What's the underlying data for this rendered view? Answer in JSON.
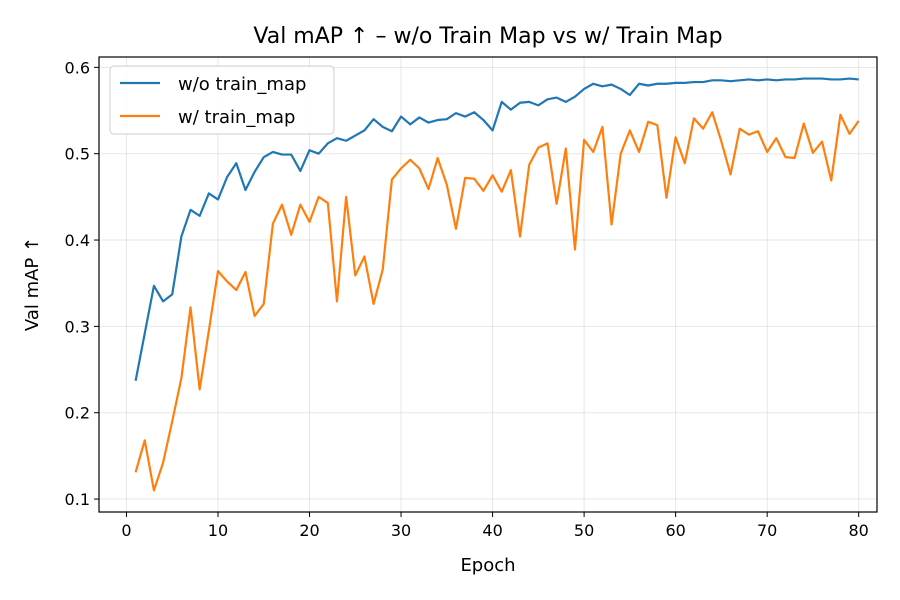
{
  "chart_data": {
    "type": "line",
    "title": "Val mAP ↑ – w/o Train Map vs  w/ Train Map",
    "xlabel": "Epoch",
    "ylabel": "Val mAP ↑",
    "xlim": [
      -3,
      82
    ],
    "ylim": [
      0.085,
      0.612
    ],
    "xticks": [
      0,
      10,
      20,
      30,
      40,
      50,
      60,
      70,
      80
    ],
    "yticks": [
      0.1,
      0.2,
      0.3,
      0.4,
      0.5,
      0.6
    ],
    "grid": true,
    "legend_position": "upper-left",
    "x": [
      1,
      2,
      3,
      4,
      5,
      6,
      7,
      8,
      9,
      10,
      11,
      12,
      13,
      14,
      15,
      16,
      17,
      18,
      19,
      20,
      21,
      22,
      23,
      24,
      25,
      26,
      27,
      28,
      29,
      30,
      31,
      32,
      33,
      34,
      35,
      36,
      37,
      38,
      39,
      40,
      41,
      42,
      43,
      44,
      45,
      46,
      47,
      48,
      49,
      50,
      51,
      52,
      53,
      54,
      55,
      56,
      57,
      58,
      59,
      60,
      61,
      62,
      63,
      64,
      65,
      66,
      67,
      68,
      69,
      70,
      71,
      72,
      73,
      74,
      75,
      76,
      77,
      78,
      79,
      80
    ],
    "series": [
      {
        "name": "w/o train_map",
        "color": "#1f77b4",
        "values": [
          0.237,
          0.292,
          0.347,
          0.329,
          0.337,
          0.404,
          0.435,
          0.428,
          0.454,
          0.447,
          0.473,
          0.489,
          0.458,
          0.479,
          0.496,
          0.502,
          0.499,
          0.499,
          0.48,
          0.504,
          0.5,
          0.512,
          0.518,
          0.515,
          0.521,
          0.527,
          0.54,
          0.531,
          0.526,
          0.543,
          0.534,
          0.542,
          0.536,
          0.539,
          0.54,
          0.547,
          0.543,
          0.548,
          0.539,
          0.527,
          0.56,
          0.551,
          0.559,
          0.56,
          0.556,
          0.563,
          0.565,
          0.56,
          0.566,
          0.575,
          0.581,
          0.578,
          0.58,
          0.575,
          0.568,
          0.581,
          0.579,
          0.581,
          0.581,
          0.582,
          0.582,
          0.583,
          0.583,
          0.585,
          0.585,
          0.584,
          0.585,
          0.586,
          0.585,
          0.586,
          0.585,
          0.586,
          0.586,
          0.587,
          0.587,
          0.587,
          0.586,
          0.586,
          0.587,
          0.586
        ]
      },
      {
        "name": "w/ train_map",
        "color": "#ff7f0e",
        "values": [
          0.131,
          0.168,
          0.11,
          0.142,
          0.19,
          0.24,
          0.322,
          0.227,
          0.295,
          0.364,
          0.352,
          0.342,
          0.363,
          0.312,
          0.326,
          0.419,
          0.441,
          0.406,
          0.441,
          0.421,
          0.45,
          0.443,
          0.329,
          0.45,
          0.359,
          0.381,
          0.326,
          0.366,
          0.47,
          0.483,
          0.493,
          0.483,
          0.459,
          0.495,
          0.464,
          0.413,
          0.472,
          0.471,
          0.457,
          0.475,
          0.456,
          0.481,
          0.404,
          0.487,
          0.507,
          0.512,
          0.442,
          0.506,
          0.389,
          0.516,
          0.502,
          0.531,
          0.418,
          0.5,
          0.527,
          0.502,
          0.537,
          0.533,
          0.449,
          0.519,
          0.489,
          0.541,
          0.529,
          0.548,
          0.514,
          0.476,
          0.529,
          0.522,
          0.526,
          0.502,
          0.518,
          0.496,
          0.495,
          0.535,
          0.501,
          0.514,
          0.469,
          0.545,
          0.523,
          0.538
        ]
      }
    ]
  }
}
